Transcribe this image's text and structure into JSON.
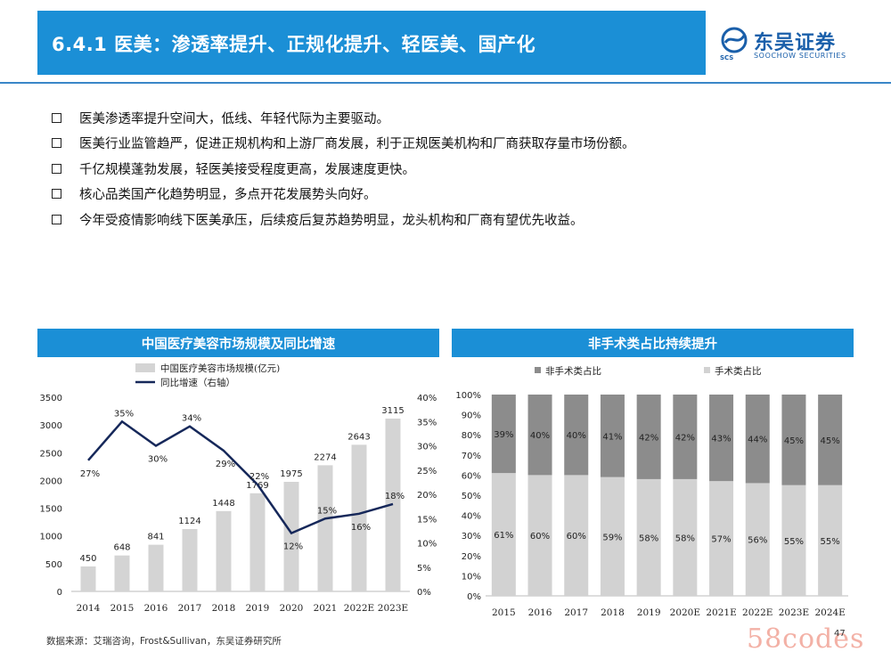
{
  "header": {
    "title": "6.4.1 医美：渗透率提升、正规化提升、轻医美、国产化",
    "logo_cn": "东吴证券",
    "logo_en": "SOOCHOW SECURITIES",
    "logo_abbr": "SCS"
  },
  "bullets": [
    "医美渗透率提升空间大，低线、年轻代际为主要驱动。",
    "医美行业监管趋严，促进正规机构和上游厂商发展，利于正规医美机构和厂商获取存量市场份额。",
    "千亿规模蓬勃发展，轻医美接受程度更高，发展速度更快。",
    "核心品类国产化趋势明显，多点开花发展势头向好。",
    "今年受疫情影响线下医美承压，后续疫后复苏趋势明显，龙头机构和厂商有望优先收益。"
  ],
  "colors": {
    "brand_blue": "#1b8fd6",
    "bar_grey": "#d4d4d4",
    "line_navy": "#16285a",
    "dark_grey": "#8c8c8c",
    "light_grey": "#d2d2d2"
  },
  "chart_data": [
    {
      "type": "bar",
      "title": "中国医疗美容市场规模及同比增速",
      "categories": [
        "2014",
        "2015",
        "2016",
        "2017",
        "2018",
        "2019",
        "2020",
        "2021",
        "2022E",
        "2023E"
      ],
      "series": [
        {
          "name": "中国医疗美容市场规模(亿元)",
          "type": "bar",
          "axis": "left",
          "values": [
            450,
            648,
            841,
            1124,
            1448,
            1769,
            1975,
            2274,
            2643,
            3115
          ]
        },
        {
          "name": "同比增速（右轴）",
          "type": "line",
          "axis": "right",
          "values": [
            27,
            35,
            30,
            34,
            29,
            22,
            12,
            15,
            16,
            18
          ]
        }
      ],
      "bar_labels": [
        "450",
        "648",
        "841",
        "1124",
        "1448",
        "1769",
        "1975",
        "2274",
        "2643",
        "3115"
      ],
      "line_labels": [
        "27%",
        "35%",
        "30%",
        "34%",
        "29%",
        "22%",
        "12%",
        "15%",
        "16%",
        "18%"
      ],
      "y_left_ticks": [
        "0",
        "500",
        "1000",
        "1500",
        "2000",
        "2500",
        "3000",
        "3500"
      ],
      "y_right_ticks": [
        "0%",
        "5%",
        "10%",
        "15%",
        "20%",
        "25%",
        "30%",
        "35%",
        "40%"
      ],
      "ylim_left": [
        0,
        3500
      ],
      "ylim_right": [
        0,
        40
      ]
    },
    {
      "type": "bar",
      "stacked": true,
      "title": "非手术类占比持续提升",
      "categories": [
        "2015",
        "2016",
        "2017",
        "2018",
        "2019",
        "2020E",
        "2021E",
        "2022E",
        "2023E",
        "2024E"
      ],
      "series": [
        {
          "name": "手术类占比",
          "values": [
            61,
            60,
            60,
            59,
            58,
            58,
            57,
            56,
            55,
            55
          ]
        },
        {
          "name": "非手术类占比",
          "values": [
            39,
            40,
            40,
            41,
            42,
            42,
            43,
            44,
            45,
            45
          ]
        }
      ],
      "bottom_labels": [
        "61%",
        "60%",
        "60%",
        "59%",
        "58%",
        "58%",
        "57%",
        "56%",
        "55%",
        "55%"
      ],
      "top_labels": [
        "39%",
        "40%",
        "40%",
        "41%",
        "42%",
        "42%",
        "43%",
        "44%",
        "45%",
        "45%"
      ],
      "y_ticks": [
        "0%",
        "10%",
        "20%",
        "30%",
        "40%",
        "50%",
        "60%",
        "70%",
        "80%",
        "90%",
        "100%"
      ],
      "ylim": [
        0,
        100
      ]
    }
  ],
  "footer": {
    "source": "数据来源：艾瑞咨询，Frost&Sullivan，东吴证券研究所",
    "page_number": "47",
    "watermark": "58codes"
  }
}
